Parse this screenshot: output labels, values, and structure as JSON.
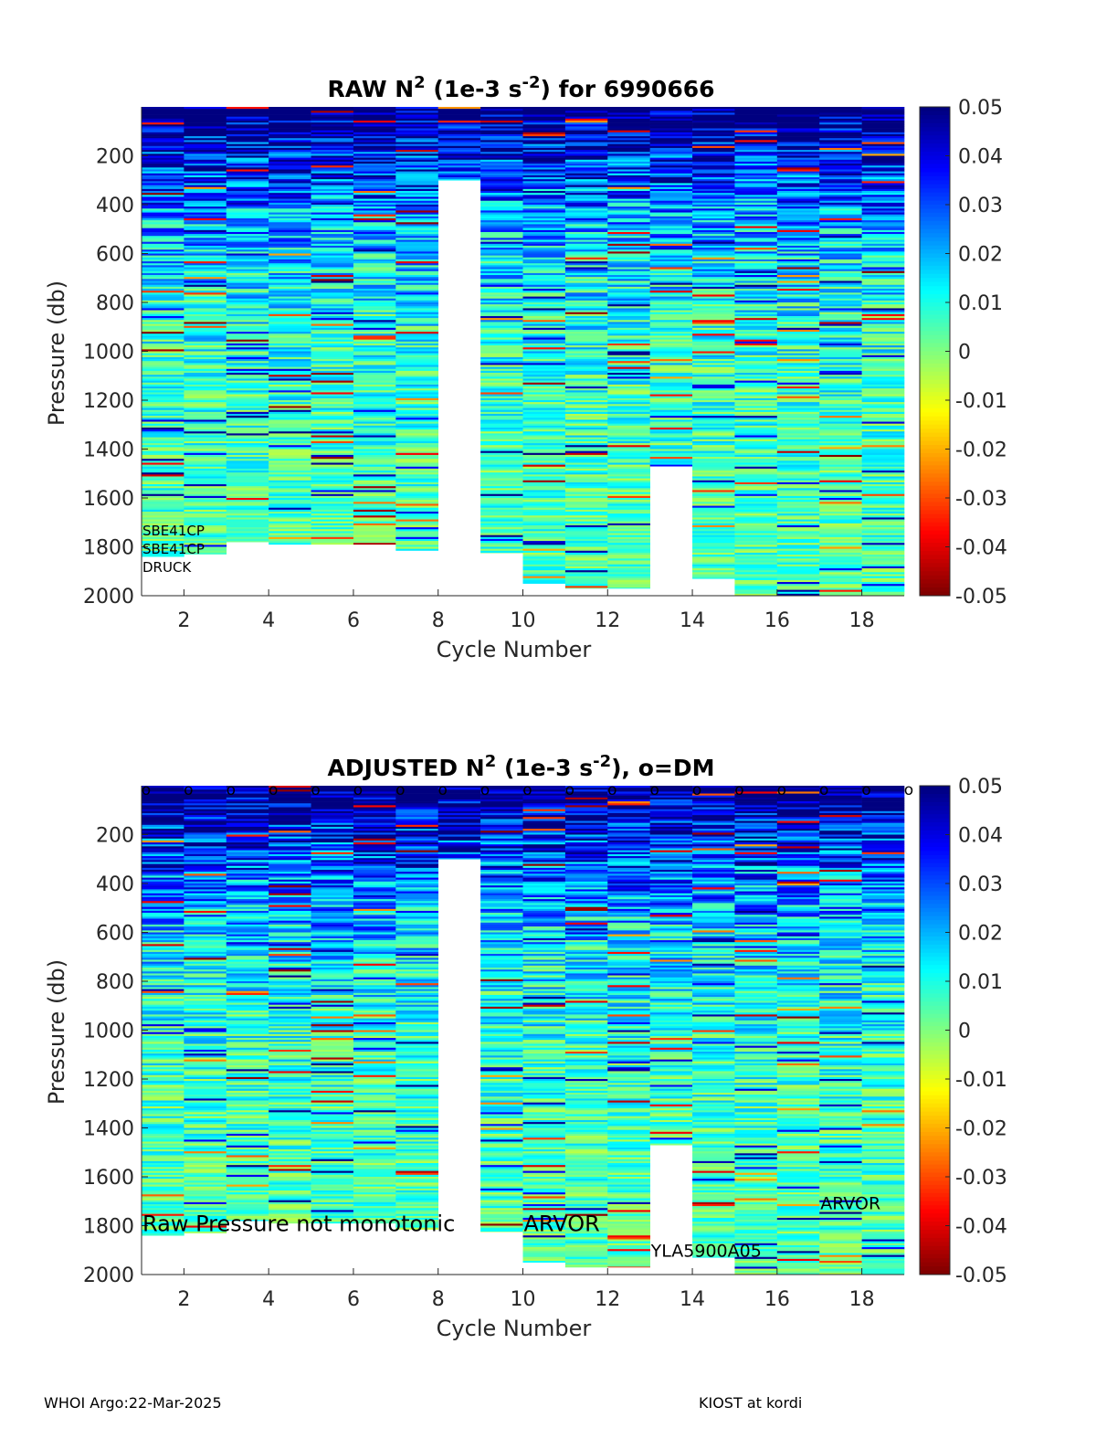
{
  "chart_data": [
    {
      "type": "heatmap",
      "title_main": "RAW N",
      "title_sup": "2",
      "title_mid": " (1e-3 s",
      "title_sup2": "-2",
      "title_end": ") for 6990666",
      "xlabel": "Cycle Number",
      "ylabel": "Pressure (db)",
      "xlim": [
        1,
        19
      ],
      "ylim": [
        0,
        2000
      ],
      "y_reversed": true,
      "xticks": [
        2,
        4,
        6,
        8,
        10,
        12,
        14,
        16,
        18
      ],
      "yticks": [
        200,
        400,
        600,
        800,
        1000,
        1200,
        1400,
        1600,
        1800,
        2000
      ],
      "colormap": "jet_reversed",
      "clim": [
        -0.05,
        0.05
      ],
      "colorbar_ticks": [
        "0.05",
        "0.04",
        "0.03",
        "0.02",
        "0.01",
        "0",
        "-0.01",
        "-0.02",
        "-0.03",
        "-0.04",
        "-0.05"
      ],
      "cycles": [
        1,
        2,
        3,
        4,
        5,
        6,
        7,
        8,
        9,
        10,
        11,
        12,
        13,
        14,
        15,
        16,
        17,
        18
      ],
      "max_pressure": [
        1840,
        1830,
        1780,
        1790,
        1790,
        1790,
        1815,
        300,
        1825,
        1950,
        1970,
        1970,
        1470,
        1930,
        2000,
        2000,
        2000,
        2000
      ],
      "annotations": [
        {
          "text": "SBE41CP",
          "x": 1.0,
          "y": 1730
        },
        {
          "text": "SBE41CP",
          "x": 1.0,
          "y": 1805
        },
        {
          "text": "DRUCK",
          "x": 1.0,
          "y": 1880
        }
      ],
      "dm_markers": false
    },
    {
      "type": "heatmap",
      "title_main": "ADJUSTED N",
      "title_sup": "2",
      "title_mid": " (1e-3 s",
      "title_sup2": "-2",
      "title_end": "), o=DM",
      "xlabel": "Cycle Number",
      "ylabel": "Pressure (db)",
      "xlim": [
        1,
        19
      ],
      "ylim": [
        0,
        2000
      ],
      "y_reversed": true,
      "xticks": [
        2,
        4,
        6,
        8,
        10,
        12,
        14,
        16,
        18
      ],
      "yticks": [
        200,
        400,
        600,
        800,
        1000,
        1200,
        1400,
        1600,
        1800,
        2000
      ],
      "colormap": "jet_reversed",
      "clim": [
        -0.05,
        0.05
      ],
      "colorbar_ticks": [
        "0.05",
        "0.04",
        "0.03",
        "0.02",
        "0.01",
        "0",
        "-0.01",
        "-0.02",
        "-0.03",
        "-0.04",
        "-0.05"
      ],
      "cycles": [
        1,
        2,
        3,
        4,
        5,
        6,
        7,
        8,
        9,
        10,
        11,
        12,
        13,
        14,
        15,
        16,
        17,
        18
      ],
      "max_pressure": [
        1840,
        1830,
        1780,
        1790,
        1790,
        1790,
        1815,
        300,
        1825,
        1950,
        1970,
        1970,
        1470,
        1930,
        2000,
        2000,
        2000,
        2000
      ],
      "annotations": [
        {
          "text": "Raw Pressure not monotonic",
          "x": 1.0,
          "y": 1800,
          "size": 24
        },
        {
          "text": "ARVOR",
          "x": 10.0,
          "y": 1800,
          "size": 24
        },
        {
          "text": "YLA5900A05",
          "x": 13.0,
          "y": 1905,
          "size": 19
        },
        {
          "text": "ARVOR",
          "x": 17.0,
          "y": 1710,
          "size": 19
        }
      ],
      "dm_markers": true,
      "dm_marker_cycles": [
        1,
        2,
        3,
        4,
        5,
        6,
        7,
        8,
        9,
        10,
        11,
        12,
        13,
        14,
        15,
        16,
        17,
        18,
        19
      ],
      "dm_marker_symbol": "o"
    }
  ],
  "footer": {
    "left": "WHOI Argo:22-Mar-2025",
    "right": "KIOST at kordi"
  }
}
